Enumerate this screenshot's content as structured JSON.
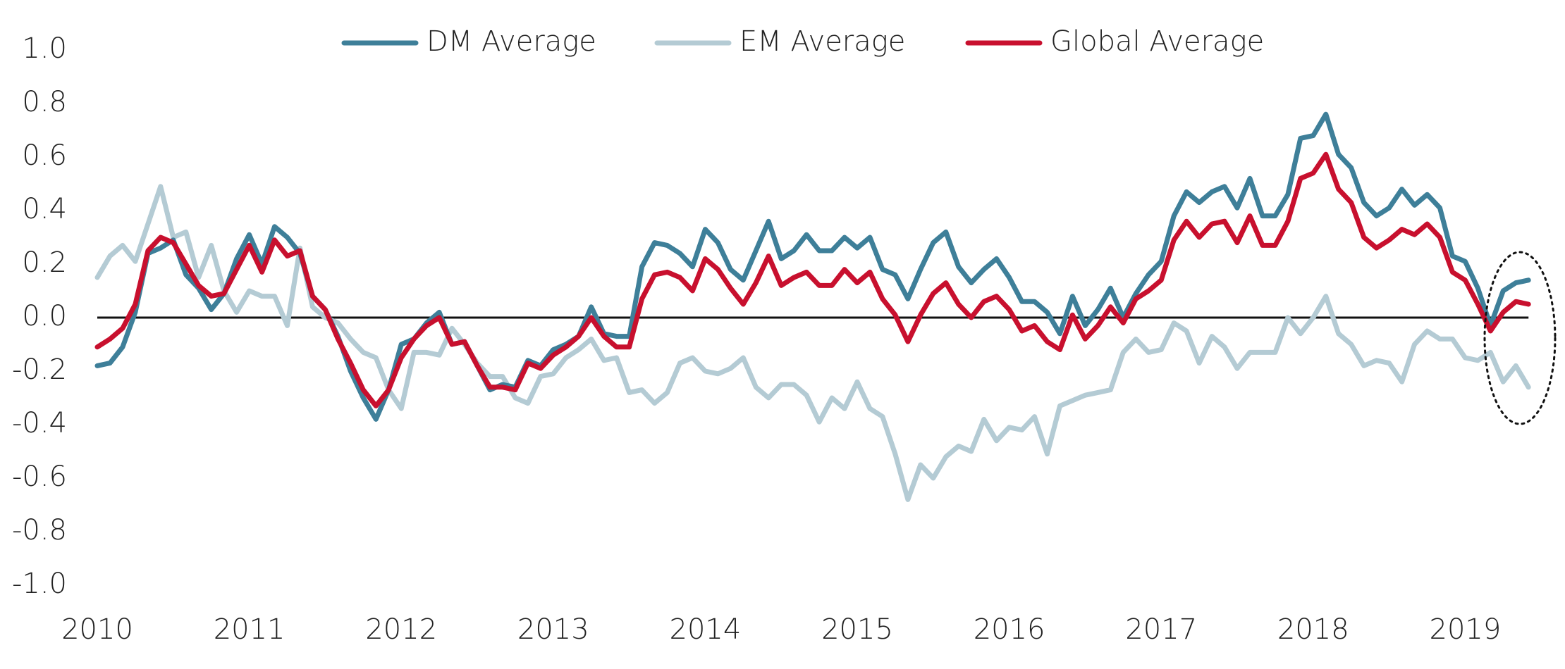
{
  "chart_data": {
    "type": "line",
    "legend": "top",
    "categories": [
      "2010",
      null,
      null,
      null,
      null,
      null,
      null,
      null,
      null,
      null,
      null,
      null,
      "2011",
      null,
      null,
      null,
      null,
      null,
      null,
      null,
      null,
      null,
      null,
      null,
      "2012",
      null,
      null,
      null,
      null,
      null,
      null,
      null,
      null,
      null,
      null,
      null,
      "2013",
      null,
      null,
      null,
      null,
      null,
      null,
      null,
      null,
      null,
      null,
      null,
      "2014",
      null,
      null,
      null,
      null,
      null,
      null,
      null,
      null,
      null,
      null,
      null,
      "2015",
      null,
      null,
      null,
      null,
      null,
      null,
      null,
      null,
      null,
      null,
      null,
      "2016",
      null,
      null,
      null,
      null,
      null,
      null,
      null,
      null,
      null,
      null,
      null,
      "2017",
      null,
      null,
      null,
      null,
      null,
      null,
      null,
      null,
      null,
      null,
      null,
      "2018",
      null,
      null,
      null,
      null,
      null,
      null,
      null,
      null,
      null,
      null,
      null,
      "2019",
      null,
      null,
      null,
      null,
      null
    ],
    "series": [
      {
        "name": "DM Average",
        "color": "#3e7f99",
        "values": [
          -0.18,
          -0.17,
          -0.11,
          0.02,
          0.24,
          0.26,
          0.29,
          0.16,
          0.11,
          0.03,
          0.09,
          0.22,
          0.31,
          0.2,
          0.34,
          0.3,
          0.24,
          0.08,
          0.03,
          -0.07,
          -0.2,
          -0.3,
          -0.38,
          -0.27,
          -0.1,
          -0.08,
          -0.02,
          0.02,
          -0.1,
          -0.09,
          -0.18,
          -0.27,
          -0.25,
          -0.26,
          -0.16,
          -0.18,
          -0.12,
          -0.1,
          -0.07,
          0.04,
          -0.06,
          -0.07,
          -0.07,
          0.19,
          0.28,
          0.27,
          0.24,
          0.19,
          0.33,
          0.28,
          0.18,
          0.14,
          0.25,
          0.36,
          0.22,
          0.25,
          0.31,
          0.25,
          0.25,
          0.3,
          0.26,
          0.3,
          0.18,
          0.16,
          0.07,
          0.18,
          0.28,
          0.32,
          0.19,
          0.13,
          0.18,
          0.22,
          0.15,
          0.06,
          0.06,
          0.02,
          -0.06,
          0.08,
          -0.03,
          0.03,
          0.11,
          0.0,
          0.09,
          0.16,
          0.21,
          0.38,
          0.47,
          0.43,
          0.47,
          0.49,
          0.41,
          0.52,
          0.38,
          0.38,
          0.46,
          0.67,
          0.68,
          0.76,
          0.61,
          0.56,
          0.43,
          0.38,
          0.41,
          0.48,
          0.42,
          0.46,
          0.41,
          0.23,
          0.21,
          0.11,
          -0.03,
          0.1,
          0.13,
          0.14
        ]
      },
      {
        "name": "EM Average",
        "color": "#b4cbd4",
        "values": [
          0.15,
          0.23,
          0.27,
          0.21,
          0.35,
          0.49,
          0.3,
          0.32,
          0.15,
          0.27,
          0.1,
          0.02,
          0.1,
          0.08,
          0.08,
          -0.03,
          0.26,
          0.04,
          0.0,
          -0.02,
          -0.08,
          -0.13,
          -0.15,
          -0.27,
          -0.34,
          -0.13,
          -0.13,
          -0.14,
          -0.04,
          -0.1,
          -0.17,
          -0.22,
          -0.22,
          -0.3,
          -0.32,
          -0.22,
          -0.21,
          -0.15,
          -0.12,
          -0.08,
          -0.16,
          -0.15,
          -0.28,
          -0.27,
          -0.32,
          -0.28,
          -0.17,
          -0.15,
          -0.2,
          -0.21,
          -0.19,
          -0.15,
          -0.26,
          -0.3,
          -0.25,
          -0.25,
          -0.29,
          -0.39,
          -0.3,
          -0.34,
          -0.24,
          -0.34,
          -0.37,
          -0.51,
          -0.68,
          -0.55,
          -0.6,
          -0.52,
          -0.48,
          -0.5,
          -0.38,
          -0.46,
          -0.41,
          -0.42,
          -0.37,
          -0.51,
          -0.33,
          -0.31,
          -0.29,
          -0.28,
          -0.27,
          -0.13,
          -0.08,
          -0.13,
          -0.12,
          -0.02,
          -0.05,
          -0.17,
          -0.07,
          -0.11,
          -0.19,
          -0.13,
          -0.13,
          -0.13,
          0.0,
          -0.06,
          0.0,
          0.08,
          -0.06,
          -0.1,
          -0.18,
          -0.16,
          -0.17,
          -0.24,
          -0.1,
          -0.05,
          -0.08,
          -0.08,
          -0.15,
          -0.16,
          -0.13,
          -0.24,
          -0.18,
          -0.26
        ]
      },
      {
        "name": "Global Average",
        "color": "#c8102e",
        "values": [
          -0.11,
          -0.08,
          -0.04,
          0.05,
          0.25,
          0.3,
          0.28,
          0.2,
          0.12,
          0.08,
          0.09,
          0.18,
          0.27,
          0.17,
          0.29,
          0.23,
          0.25,
          0.08,
          0.03,
          -0.08,
          -0.17,
          -0.27,
          -0.33,
          -0.27,
          -0.15,
          -0.08,
          -0.03,
          0.0,
          -0.1,
          -0.09,
          -0.18,
          -0.26,
          -0.26,
          -0.27,
          -0.17,
          -0.19,
          -0.14,
          -0.11,
          -0.07,
          0.0,
          -0.07,
          -0.11,
          -0.11,
          0.07,
          0.16,
          0.17,
          0.15,
          0.1,
          0.22,
          0.18,
          0.11,
          0.05,
          0.13,
          0.23,
          0.12,
          0.15,
          0.17,
          0.12,
          0.12,
          0.18,
          0.13,
          0.17,
          0.07,
          0.01,
          -0.09,
          0.01,
          0.09,
          0.13,
          0.05,
          0.0,
          0.06,
          0.08,
          0.03,
          -0.05,
          -0.03,
          -0.09,
          -0.12,
          0.01,
          -0.08,
          -0.03,
          0.04,
          -0.02,
          0.07,
          0.1,
          0.14,
          0.29,
          0.36,
          0.3,
          0.35,
          0.36,
          0.28,
          0.38,
          0.27,
          0.27,
          0.36,
          0.52,
          0.54,
          0.61,
          0.48,
          0.43,
          0.3,
          0.26,
          0.29,
          0.33,
          0.31,
          0.35,
          0.3,
          0.17,
          0.14,
          0.05,
          -0.05,
          0.02,
          0.06,
          0.05
        ]
      }
    ],
    "ylim": [
      -1,
      1
    ],
    "yticks": [
      {
        "value": 1,
        "label": "1.0"
      },
      0.8,
      0.6,
      0.4,
      0.2,
      {
        "value": 0,
        "label": "0.0"
      },
      -0.2,
      -0.4,
      -0.6,
      -0.8,
      {
        "value": -1,
        "label": "-1.0"
      }
    ],
    "zero_line": true
  }
}
